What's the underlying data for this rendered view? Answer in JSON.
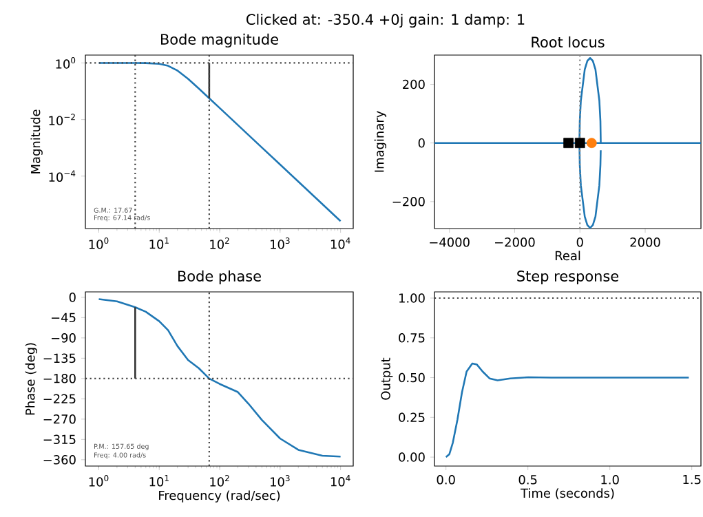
{
  "chart_data": [
    {
      "type": "other",
      "title": "Clicked at:      -350.4         +0j  gain:          1  damp:          1"
    },
    {
      "type": "line",
      "title": "Bode magnitude",
      "ylabel": "Magnitude",
      "log": "xy",
      "x": [
        1,
        2,
        4,
        6,
        10,
        14,
        20,
        30,
        45,
        67.14,
        100,
        200,
        300,
        500,
        1000,
        2000,
        5000,
        10000
      ],
      "series": [
        {
          "color": "#1f77b4",
          "values": [
            1.0,
            1.0,
            0.998,
            0.99,
            0.931,
            0.794,
            0.539,
            0.274,
            0.125,
            0.0566,
            0.0256,
            0.0064,
            0.00284,
            0.00102,
            0.000256,
            6.4e-05,
            1.02e-05,
            2.56e-06
          ]
        },
        {
          "color": "#333333",
          "x": [
            67.14,
            67.14
          ],
          "values": [
            0.0566,
            1
          ]
        }
      ],
      "xlim": [
        0.6,
        16200
      ],
      "ylim": [
        1.4e-06,
        1.9
      ],
      "xticks": [
        {
          "value": 1,
          "label": "10$^{0}$"
        },
        {
          "value": 10,
          "label": "10$^{1}$"
        },
        {
          "value": 100,
          "label": "10$^{2}$"
        },
        {
          "value": 1000,
          "label": "10$^{3}$"
        },
        {
          "value": 10000,
          "label": "10$^{4}$"
        }
      ],
      "yticks": [
        {
          "value": 1,
          "label": "10$^{0}$"
        },
        {
          "value": 0.01,
          "label": "10$^{−2}$"
        },
        {
          "value": 0.0001,
          "label": "10$^{−4}$"
        }
      ],
      "ref_lines": [
        {
          "axis": "y",
          "value": 1,
          "color": "#444444",
          "line_style": "dotted"
        },
        {
          "axis": "x",
          "value": 4,
          "color": "#444444",
          "line_style": "dotted"
        },
        {
          "axis": "x",
          "value": 67.14,
          "color": "#444444",
          "line_style": "dotted"
        }
      ],
      "annotations": [
        "G.M.: 17.67",
        "Freq: 67.14 rad/s"
      ]
    },
    {
      "type": "line",
      "title": "Root locus",
      "xlabel": "Real",
      "ylabel": "Imaginary",
      "series": [
        {
          "color": "#1f77b4",
          "x": [
            -4457,
            3709
          ],
          "values": [
            0,
            0
          ]
        },
        {
          "color": "#1f77b4",
          "x": [
            639,
            628,
            595,
            476,
            397,
            312,
            227,
            148,
            29,
            -4,
            -15,
            -4,
            29,
            148,
            227,
            312,
            397,
            476,
            595,
            628,
            638
          ],
          "values": [
            0,
            75,
            145,
            251,
            280,
            290,
            280,
            251,
            145,
            75,
            0,
            -75,
            -145,
            -251,
            -280,
            -290,
            -280,
            -251,
            -145,
            -75,
            -25
          ]
        },
        {
          "type": "scatter",
          "color": "#000000",
          "marker": "square",
          "x": [
            -350.4,
            0
          ],
          "values": [
            0,
            0
          ]
        },
        {
          "type": "scatter",
          "color": "#ff7f0e",
          "marker": "circle",
          "x": [
            360
          ],
          "values": [
            0
          ]
        }
      ],
      "xlim": [
        -4457,
        3709
      ],
      "ylim": [
        -292,
        300
      ],
      "xticks": [
        {
          "value": -4000,
          "label": "−4000"
        },
        {
          "value": -2000,
          "label": "−2000"
        },
        0,
        2000
      ],
      "yticks": [
        {
          "value": -200,
          "label": "−200"
        },
        0,
        200
      ],
      "ref_lines": [
        {
          "axis": "x",
          "value": 0,
          "color": "#888888",
          "line_style": "dotted"
        }
      ]
    },
    {
      "type": "line",
      "title": "Bode phase",
      "xlabel": "Frequency (rad/sec)",
      "ylabel": "Phase (deg)",
      "log": "x",
      "x": [
        1,
        2,
        4,
        6,
        10,
        14,
        20,
        30,
        45,
        67.14,
        100,
        200,
        300,
        500,
        1000,
        2000,
        5000,
        10000
      ],
      "series": [
        {
          "color": "#1f77b4",
          "values": [
            -4,
            -9,
            -22,
            -32,
            -53,
            -73,
            -108,
            -139,
            -157,
            -180,
            -192,
            -210,
            -236,
            -272,
            -313,
            -338,
            -351,
            -353
          ]
        },
        {
          "color": "#333333",
          "x": [
            4,
            4
          ],
          "values": [
            -22,
            -180
          ]
        }
      ],
      "xlim": [
        0.6,
        16200
      ],
      "ylim": [
        -374,
        12
      ],
      "xticks": [
        {
          "value": 1,
          "label": "10$^{0}$"
        },
        {
          "value": 10,
          "label": "10$^{1}$"
        },
        {
          "value": 100,
          "label": "10$^{2}$"
        },
        {
          "value": 1000,
          "label": "10$^{3}$"
        },
        {
          "value": 10000,
          "label": "10$^{4}$"
        }
      ],
      "yticks": [
        0,
        {
          "value": -45,
          "label": "−45"
        },
        {
          "value": -90,
          "label": "−90"
        },
        {
          "value": -135,
          "label": "−135"
        },
        {
          "value": -180,
          "label": "−180"
        },
        {
          "value": -225,
          "label": "−225"
        },
        {
          "value": -270,
          "label": "−270"
        },
        {
          "value": -315,
          "label": "−315"
        },
        {
          "value": -360,
          "label": "−360"
        }
      ],
      "ref_lines": [
        {
          "axis": "y",
          "value": -180,
          "color": "#444444",
          "line_style": "dotted"
        },
        {
          "axis": "x",
          "value": 67.14,
          "color": "#444444",
          "line_style": "dotted"
        }
      ],
      "annotations": [
        "P.M.: 157.65 deg",
        "Freq: 4.00 rad/s"
      ]
    },
    {
      "type": "line",
      "title": "Step response",
      "xlabel": "Time (seconds)",
      "ylabel": "Output",
      "x": [
        0,
        0.021,
        0.042,
        0.07,
        0.098,
        0.126,
        0.161,
        0.189,
        0.224,
        0.266,
        0.315,
        0.392,
        0.503,
        0.643,
        1.0,
        1.482
      ],
      "series": [
        {
          "color": "#1f77b4",
          "values": [
            0,
            0.019,
            0.091,
            0.235,
            0.408,
            0.538,
            0.589,
            0.582,
            0.538,
            0.495,
            0.483,
            0.495,
            0.502,
            0.5,
            0.5,
            0.5
          ]
        }
      ],
      "xlim": [
        -0.07,
        1.556
      ],
      "ylim": [
        -0.056,
        1.039
      ],
      "xticks": [
        {
          "value": 0,
          "label": "0.0"
        },
        {
          "value": 0.5,
          "label": "0.5"
        },
        {
          "value": 1,
          "label": "1.0"
        },
        {
          "value": 1.5,
          "label": "1.5"
        }
      ],
      "yticks": [
        {
          "value": 0,
          "label": "0.00"
        },
        {
          "value": 0.25,
          "label": "0.25"
        },
        {
          "value": 0.5,
          "label": "0.50"
        },
        {
          "value": 0.75,
          "label": "0.75"
        },
        {
          "value": 1,
          "label": "1.00"
        }
      ],
      "ref_lines": [
        {
          "axis": "y",
          "value": 1,
          "color": "#444444",
          "line_style": "dotted"
        }
      ]
    }
  ]
}
